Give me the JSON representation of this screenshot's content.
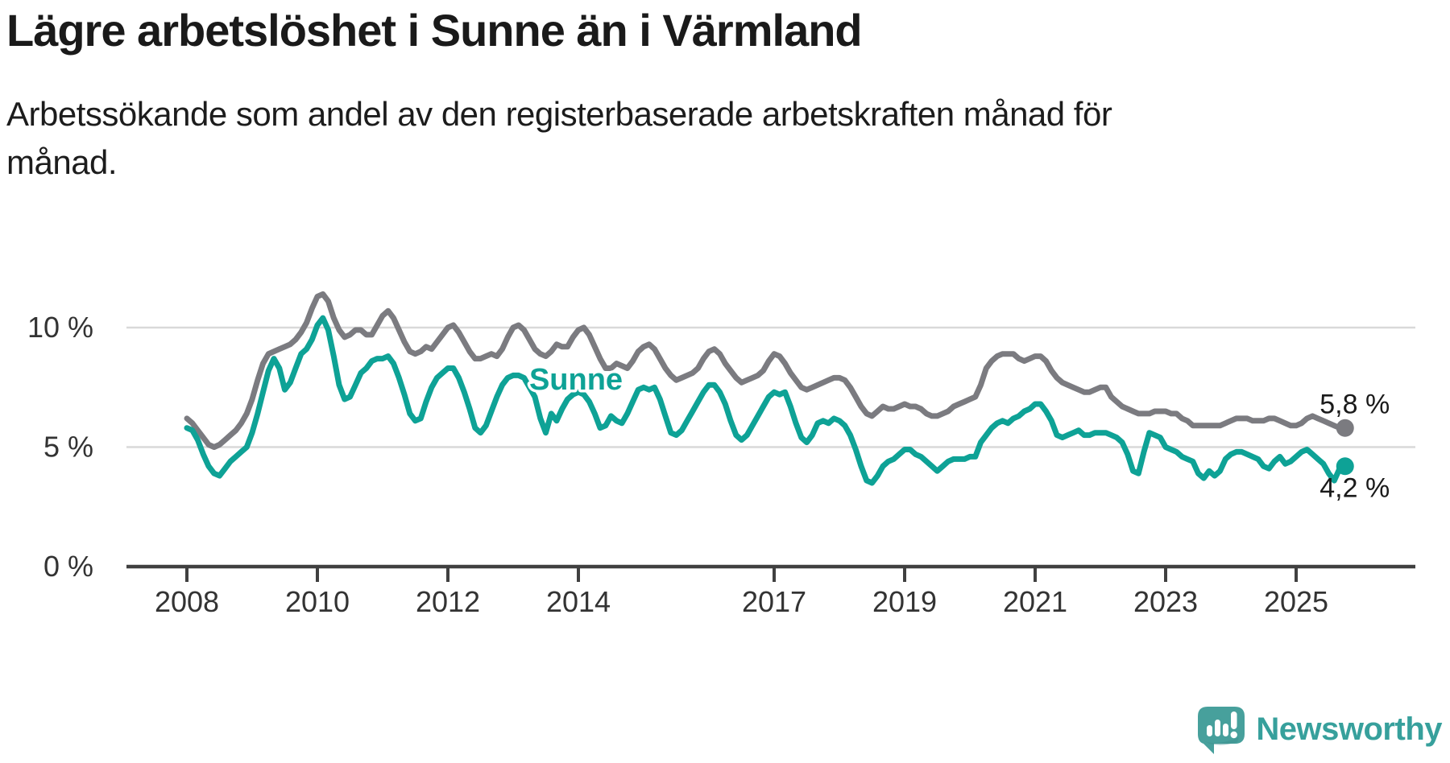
{
  "title": "Lägre arbetslöshet i Sunne än i Värmland",
  "subtitle": "Arbetssökande som andel av den registerbaserade arbetskraften månad för\nmånad.",
  "colors": {
    "sunne": "#0ea296",
    "varmland": "#7b7b80",
    "grid": "#d9d9d9",
    "axis": "#404040",
    "tick_text": "#333333",
    "label_text": "#1a1a1a",
    "logo_teal": "#47a09c",
    "logo_text_teal": "#37a09c",
    "logo_shadow": "#3c8e8d"
  },
  "logo": {
    "text": "Newsworthy"
  },
  "chart_data": {
    "type": "line",
    "title": "Lägre arbetslöshet i Sunne än i Värmland",
    "subtitle": "Arbetssökande som andel av den registerbaserade arbetskraften månad för månad.",
    "frequency": "monthly",
    "x_start": "2008-01",
    "x_end": "2025-10",
    "unit": "%",
    "ylim": [
      0,
      12
    ],
    "grid": "horizontal",
    "legend_position": "inline-labels",
    "x_ticks": [
      {
        "label": "2008",
        "year": 2008
      },
      {
        "label": "2010",
        "year": 2010
      },
      {
        "label": "2012",
        "year": 2012
      },
      {
        "label": "2014",
        "year": 2014
      },
      {
        "label": "2017",
        "year": 2017
      },
      {
        "label": "2019",
        "year": 2019
      },
      {
        "label": "2021",
        "year": 2021
      },
      {
        "label": "2023",
        "year": 2023
      },
      {
        "label": "2025",
        "year": 2025
      }
    ],
    "y_ticks": [
      {
        "label": "0 %",
        "value": 0
      },
      {
        "label": "5 %",
        "value": 5
      },
      {
        "label": "10 %",
        "value": 10
      }
    ],
    "series": [
      {
        "name": "Värmland",
        "color": "#7b7b80",
        "end_label": "5,8 %",
        "end_value": 5.8,
        "values": [
          6.2,
          6.0,
          5.7,
          5.4,
          5.1,
          5.0,
          5.1,
          5.3,
          5.5,
          5.7,
          6.0,
          6.4,
          7.0,
          7.8,
          8.5,
          8.9,
          9.0,
          9.1,
          9.2,
          9.3,
          9.5,
          9.8,
          10.2,
          10.8,
          11.3,
          11.4,
          11.1,
          10.4,
          9.9,
          9.6,
          9.7,
          9.9,
          9.9,
          9.7,
          9.7,
          10.1,
          10.5,
          10.7,
          10.4,
          9.9,
          9.4,
          9.0,
          8.9,
          9.0,
          9.2,
          9.1,
          9.4,
          9.7,
          10.0,
          10.1,
          9.8,
          9.4,
          9.0,
          8.7,
          8.7,
          8.8,
          8.9,
          8.8,
          9.1,
          9.6,
          10.0,
          10.1,
          9.9,
          9.5,
          9.1,
          8.9,
          8.8,
          9.0,
          9.3,
          9.2,
          9.2,
          9.6,
          9.9,
          10.0,
          9.7,
          9.2,
          8.7,
          8.3,
          8.3,
          8.5,
          8.4,
          8.3,
          8.6,
          9.0,
          9.2,
          9.3,
          9.1,
          8.7,
          8.3,
          8.0,
          7.8,
          7.9,
          8.0,
          8.1,
          8.3,
          8.7,
          9.0,
          9.1,
          8.9,
          8.5,
          8.2,
          7.9,
          7.7,
          7.8,
          7.9,
          8.0,
          8.2,
          8.6,
          8.9,
          8.8,
          8.5,
          8.1,
          7.8,
          7.5,
          7.4,
          7.5,
          7.6,
          7.7,
          7.8,
          7.9,
          7.9,
          7.8,
          7.5,
          7.1,
          6.7,
          6.4,
          6.3,
          6.5,
          6.7,
          6.6,
          6.6,
          6.7,
          6.8,
          6.7,
          6.7,
          6.6,
          6.4,
          6.3,
          6.3,
          6.4,
          6.5,
          6.7,
          6.8,
          6.9,
          7.0,
          7.1,
          7.6,
          8.3,
          8.6,
          8.8,
          8.9,
          8.9,
          8.9,
          8.7,
          8.6,
          8.7,
          8.8,
          8.8,
          8.6,
          8.2,
          7.9,
          7.7,
          7.6,
          7.5,
          7.4,
          7.3,
          7.3,
          7.4,
          7.5,
          7.5,
          7.1,
          6.9,
          6.7,
          6.6,
          6.5,
          6.4,
          6.4,
          6.4,
          6.5,
          6.5,
          6.5,
          6.4,
          6.4,
          6.2,
          6.1,
          5.9,
          5.9,
          5.9,
          5.9,
          5.9,
          5.9,
          6.0,
          6.1,
          6.2,
          6.2,
          6.2,
          6.1,
          6.1,
          6.1,
          6.2,
          6.2,
          6.1,
          6.0,
          5.9,
          5.9,
          6.0,
          6.2,
          6.3,
          6.2,
          6.1,
          6.0,
          5.9,
          5.8,
          5.8
        ]
      },
      {
        "name": "Sunne",
        "color": "#0ea296",
        "end_label": "4,2 %",
        "end_value": 4.2,
        "values": [
          5.8,
          5.7,
          5.3,
          4.7,
          4.2,
          3.9,
          3.8,
          4.1,
          4.4,
          4.6,
          4.8,
          5.0,
          5.6,
          6.4,
          7.3,
          8.2,
          8.7,
          8.3,
          7.4,
          7.7,
          8.3,
          8.9,
          9.1,
          9.5,
          10.1,
          10.4,
          9.9,
          8.8,
          7.6,
          7.0,
          7.1,
          7.6,
          8.1,
          8.3,
          8.6,
          8.7,
          8.7,
          8.8,
          8.5,
          7.9,
          7.2,
          6.4,
          6.1,
          6.2,
          6.9,
          7.5,
          7.9,
          8.1,
          8.3,
          8.3,
          7.9,
          7.3,
          6.6,
          5.8,
          5.6,
          5.9,
          6.5,
          7.1,
          7.6,
          7.9,
          8.0,
          8.0,
          7.9,
          7.5,
          7.1,
          6.2,
          5.6,
          6.4,
          6.1,
          6.6,
          7.0,
          7.2,
          7.3,
          7.2,
          6.9,
          6.4,
          5.8,
          5.9,
          6.3,
          6.1,
          6.0,
          6.4,
          6.9,
          7.4,
          7.5,
          7.4,
          7.5,
          7.0,
          6.3,
          5.6,
          5.5,
          5.7,
          6.1,
          6.5,
          6.9,
          7.3,
          7.6,
          7.6,
          7.3,
          6.8,
          6.1,
          5.5,
          5.3,
          5.5,
          5.9,
          6.3,
          6.7,
          7.1,
          7.3,
          7.2,
          7.3,
          6.7,
          6.0,
          5.4,
          5.2,
          5.5,
          6.0,
          6.1,
          6.0,
          6.2,
          6.1,
          5.9,
          5.5,
          4.9,
          4.2,
          3.6,
          3.5,
          3.8,
          4.2,
          4.4,
          4.5,
          4.7,
          4.9,
          4.9,
          4.7,
          4.6,
          4.4,
          4.2,
          4.0,
          4.2,
          4.4,
          4.5,
          4.5,
          4.5,
          4.6,
          4.6,
          5.2,
          5.5,
          5.8,
          6.0,
          6.1,
          6.0,
          6.2,
          6.3,
          6.5,
          6.6,
          6.8,
          6.8,
          6.5,
          6.1,
          5.5,
          5.4,
          5.5,
          5.6,
          5.7,
          5.5,
          5.5,
          5.6,
          5.6,
          5.6,
          5.5,
          5.4,
          5.2,
          4.7,
          4.0,
          3.9,
          4.8,
          5.6,
          5.5,
          5.4,
          5.0,
          4.9,
          4.8,
          4.6,
          4.5,
          4.4,
          3.9,
          3.7,
          4.0,
          3.8,
          4.0,
          4.5,
          4.7,
          4.8,
          4.8,
          4.7,
          4.6,
          4.5,
          4.2,
          4.1,
          4.4,
          4.6,
          4.3,
          4.4,
          4.6,
          4.8,
          4.9,
          4.7,
          4.5,
          4.3,
          3.9,
          3.6,
          4.1,
          4.2
        ]
      }
    ]
  }
}
